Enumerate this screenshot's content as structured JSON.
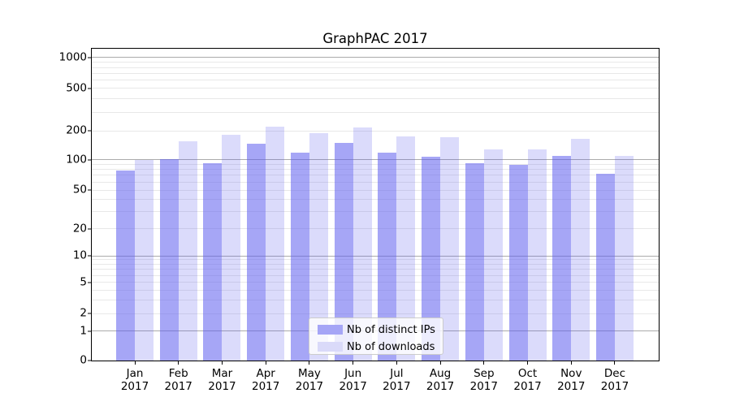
{
  "chart_data": {
    "type": "bar",
    "title": "GraphPAC 2017",
    "categories": [
      "Jan 2017",
      "Feb 2017",
      "Mar 2017",
      "Apr 2017",
      "May 2017",
      "Jun 2017",
      "Jul 2017",
      "Aug 2017",
      "Sep 2017",
      "Oct 2017",
      "Nov 2017",
      "Dec 2017"
    ],
    "series": [
      {
        "name": "Nb of distinct IPs",
        "color": "#a5a5f6",
        "fill": "rgba(92,92,238,0.55)",
        "values": [
          78,
          101,
          93,
          146,
          119,
          150,
          118,
          108,
          92,
          89,
          109,
          73
        ]
      },
      {
        "name": "Nb of downloads",
        "color": "#dadaf9",
        "fill": "rgba(92,92,238,0.22)",
        "values": [
          100,
          155,
          181,
          220,
          191,
          215,
          175,
          172,
          129,
          129,
          166,
          109
        ]
      }
    ],
    "xlabel": "",
    "ylabel": "",
    "yscale": "symlog",
    "ylim": [
      0,
      1230
    ],
    "yticks": [
      0,
      1,
      2,
      5,
      10,
      20,
      50,
      100,
      200,
      500,
      1000
    ],
    "minor_gridline_values": [
      2,
      3,
      4,
      5,
      6,
      7,
      8,
      9,
      20,
      30,
      40,
      50,
      60,
      70,
      80,
      90,
      200,
      300,
      400,
      500,
      600,
      700,
      800,
      900
    ],
    "major_gridline_values": [
      1,
      10,
      100,
      1000
    ],
    "grid": "horizontal",
    "legend_position": "lower center",
    "colors": {
      "major_gridline": "#ababab",
      "minor_gridline": "#e8e8e8",
      "axis": "#000000",
      "legend_border": "#cccccc"
    }
  }
}
